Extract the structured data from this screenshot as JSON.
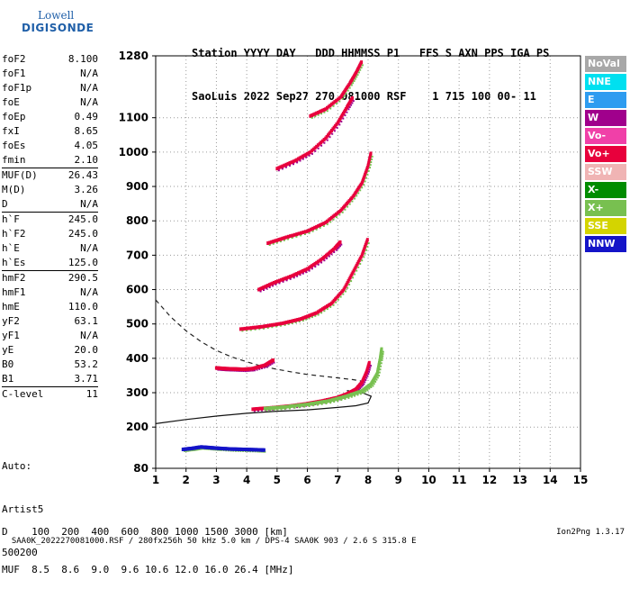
{
  "logo": {
    "line1": "Lowell",
    "line2": "DIGISONDE"
  },
  "header": {
    "line1": "Station YYYY DAY   DDD HHMMSS P1   FFS S AXN PPS IGA PS",
    "line2": "SaoLuis 2022 Sep27 270 081000 RSF    1 715 100 00- 11"
  },
  "params": {
    "group1": [
      {
        "name": "foF2",
        "value": "8.100"
      },
      {
        "name": "foF1",
        "value": "N/A"
      },
      {
        "name": "foF1p",
        "value": "N/A"
      },
      {
        "name": "foE",
        "value": "N/A"
      },
      {
        "name": "foEp",
        "value": "0.49"
      },
      {
        "name": "fxI",
        "value": "8.65"
      },
      {
        "name": "foEs",
        "value": "4.05"
      },
      {
        "name": "fmin",
        "value": "2.10"
      }
    ],
    "group2": [
      {
        "name": "MUF(D)",
        "value": "26.43"
      },
      {
        "name": "M(D)",
        "value": "3.26"
      },
      {
        "name": "D",
        "value": "N/A"
      }
    ],
    "group3": [
      {
        "name": "h`F",
        "value": "245.0"
      },
      {
        "name": "h`F2",
        "value": "245.0"
      },
      {
        "name": "h`E",
        "value": "N/A"
      },
      {
        "name": "h`Es",
        "value": "125.0"
      }
    ],
    "group4": [
      {
        "name": "hmF2",
        "value": "290.5"
      },
      {
        "name": "hmF1",
        "value": "N/A"
      },
      {
        "name": "hmE",
        "value": "110.0"
      },
      {
        "name": "yF2",
        "value": "63.1"
      },
      {
        "name": "yF1",
        "value": "N/A"
      },
      {
        "name": "yE",
        "value": "20.0"
      },
      {
        "name": "B0",
        "value": "53.2"
      },
      {
        "name": "B1",
        "value": "3.71"
      }
    ],
    "group5": [
      {
        "name": "C-level",
        "value": "11"
      }
    ]
  },
  "auto": {
    "line1": "Auto:",
    "line2": "Artist5",
    "line3": "500200"
  },
  "legend": [
    {
      "label": "NoVal",
      "color": "#a8a8a8"
    },
    {
      "label": "NNE",
      "color": "#00e0f0"
    },
    {
      "label": "E",
      "color": "#2e9cf0"
    },
    {
      "label": "W",
      "color": "#a0008c"
    },
    {
      "label": "Vo-",
      "color": "#f040a8"
    },
    {
      "label": "Vo+",
      "color": "#e8003c"
    },
    {
      "label": "SSW",
      "color": "#f0b4b4"
    },
    {
      "label": "X-",
      "color": "#008c00"
    },
    {
      "label": "X+",
      "color": "#78c050"
    },
    {
      "label": "SSE",
      "color": "#d4d400"
    },
    {
      "label": "NNW",
      "color": "#1414c8"
    }
  ],
  "muf_table": {
    "line1": "D    100  200  400  600  800 1000 1500 3000 [km]",
    "line2": "MUF  8.5  8.6  9.0  9.6 10.6 12.0 16.0 26.4 [MHz]"
  },
  "footer": {
    "left": "SAA0K_2022270081000.RSF / 280fx256h 50 kHz 5.0 km / DPS-4 SAA0K 903 / 2.6 S 315.8 E",
    "right": "Ion2Png 1.3.17"
  },
  "chart_data": {
    "type": "scatter",
    "title": "",
    "xlabel": "",
    "ylabel": "",
    "xlim": [
      1,
      15
    ],
    "ylim": [
      80,
      1280
    ],
    "x_ticks": [
      1,
      2,
      3,
      4,
      5,
      6,
      7,
      8,
      9,
      10,
      11,
      12,
      13,
      14,
      15
    ],
    "y_ticks": [
      80,
      200,
      300,
      400,
      500,
      600,
      700,
      800,
      900,
      1000,
      1100,
      1280
    ],
    "grid": true,
    "traces": [
      {
        "name": "Es echo",
        "color": "#1414c8",
        "points": [
          [
            1.9,
            135
          ],
          [
            2.2,
            138
          ],
          [
            2.5,
            142
          ],
          [
            2.8,
            140
          ],
          [
            3.1,
            138
          ],
          [
            3.5,
            136
          ],
          [
            3.9,
            135
          ],
          [
            4.3,
            134
          ],
          [
            4.6,
            133
          ]
        ]
      },
      {
        "name": "F trace O",
        "color": "#e8003c",
        "points": [
          [
            4.2,
            252
          ],
          [
            4.8,
            256
          ],
          [
            5.5,
            262
          ],
          [
            6.0,
            268
          ],
          [
            6.5,
            276
          ],
          [
            7.0,
            286
          ],
          [
            7.3,
            296
          ],
          [
            7.6,
            310
          ],
          [
            7.8,
            330
          ],
          [
            7.95,
            360
          ],
          [
            8.05,
            390
          ]
        ]
      },
      {
        "name": "F trace X",
        "color": "#78c050",
        "points": [
          [
            4.6,
            254
          ],
          [
            5.2,
            258
          ],
          [
            6.0,
            266
          ],
          [
            6.7,
            276
          ],
          [
            7.3,
            290
          ],
          [
            7.8,
            305
          ],
          [
            8.1,
            325
          ],
          [
            8.3,
            355
          ],
          [
            8.4,
            400
          ],
          [
            8.45,
            430
          ]
        ]
      },
      {
        "name": "Es multiple",
        "color": "#e8003c",
        "points": [
          [
            3.0,
            372
          ],
          [
            3.3,
            370
          ],
          [
            3.6,
            369
          ],
          [
            3.9,
            368
          ],
          [
            4.2,
            370
          ],
          [
            4.6,
            380
          ],
          [
            4.9,
            396
          ]
        ]
      },
      {
        "name": "2F",
        "color": "#e8003c",
        "points": [
          [
            3.8,
            485
          ],
          [
            4.5,
            492
          ],
          [
            5.2,
            502
          ],
          [
            5.8,
            515
          ],
          [
            6.3,
            532
          ],
          [
            6.8,
            560
          ],
          [
            7.2,
            600
          ],
          [
            7.5,
            650
          ],
          [
            7.8,
            700
          ],
          [
            8.0,
            750
          ]
        ]
      },
      {
        "name": "3F",
        "color": "#e8003c",
        "points": [
          [
            4.4,
            600
          ],
          [
            4.9,
            620
          ],
          [
            5.5,
            640
          ],
          [
            6.0,
            660
          ],
          [
            6.5,
            690
          ],
          [
            6.9,
            720
          ],
          [
            7.1,
            740
          ]
        ]
      },
      {
        "name": "4F",
        "color": "#e8003c",
        "points": [
          [
            4.7,
            735
          ],
          [
            5.3,
            752
          ],
          [
            6.0,
            770
          ],
          [
            6.6,
            795
          ],
          [
            7.1,
            830
          ],
          [
            7.5,
            870
          ],
          [
            7.8,
            910
          ],
          [
            8.0,
            960
          ],
          [
            8.1,
            1000
          ]
        ]
      },
      {
        "name": "5F",
        "color": "#e8003c",
        "points": [
          [
            5.0,
            952
          ],
          [
            5.6,
            975
          ],
          [
            6.1,
            1000
          ],
          [
            6.6,
            1040
          ],
          [
            7.0,
            1085
          ],
          [
            7.3,
            1130
          ],
          [
            7.5,
            1160
          ]
        ]
      },
      {
        "name": "6F",
        "color": "#e8003c",
        "points": [
          [
            6.1,
            1105
          ],
          [
            6.6,
            1125
          ],
          [
            7.1,
            1160
          ],
          [
            7.4,
            1200
          ],
          [
            7.6,
            1230
          ],
          [
            7.8,
            1265
          ]
        ]
      }
    ],
    "model_profile_solid": [
      [
        1.0,
        210
      ],
      [
        2.0,
        222
      ],
      [
        3.0,
        232
      ],
      [
        4.0,
        240
      ],
      [
        5.0,
        246
      ],
      [
        6.0,
        250
      ],
      [
        7.0,
        257
      ],
      [
        7.6,
        262
      ],
      [
        8.0,
        270
      ],
      [
        8.1,
        290
      ],
      [
        7.8,
        300
      ],
      [
        7.3,
        306
      ]
    ],
    "model_profile_dashed": [
      [
        1.0,
        570
      ],
      [
        1.5,
        520
      ],
      [
        2.0,
        480
      ],
      [
        2.5,
        448
      ],
      [
        3.0,
        423
      ],
      [
        3.5,
        404
      ],
      [
        4.0,
        390
      ],
      [
        4.5,
        377
      ],
      [
        5.0,
        368
      ],
      [
        5.5,
        360
      ],
      [
        6.0,
        353
      ],
      [
        6.5,
        348
      ],
      [
        7.0,
        343
      ],
      [
        7.5,
        338
      ],
      [
        7.9,
        332
      ]
    ]
  }
}
